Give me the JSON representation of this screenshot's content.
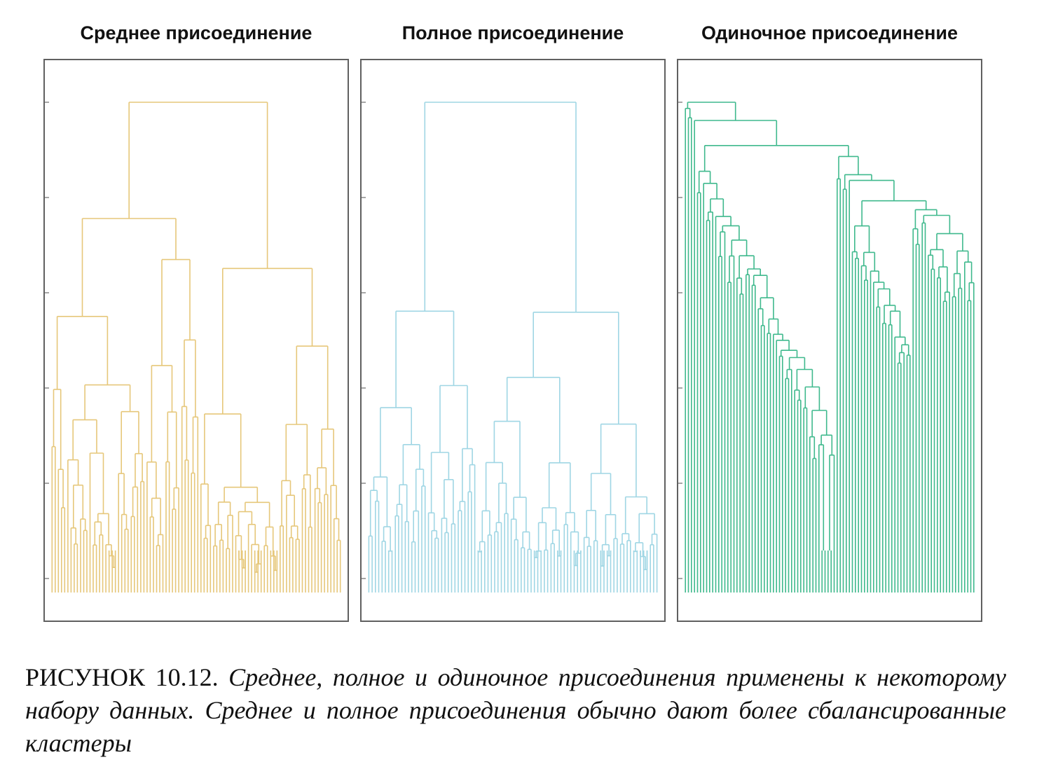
{
  "panels": [
    {
      "title": "Среднее присоединение",
      "color": "#e6c77a"
    },
    {
      "title": "Полное присоединение",
      "color": "#9fd6e4"
    },
    {
      "title": "Одиночное присоединение",
      "color": "#3fb98d"
    }
  ],
  "caption": {
    "figure_number": "РИСУНОК 10.12.",
    "text": "Среднее, полное и одиночное присоединения применены к некоторому набору данных. Среднее и полное присоединения обычно дают более сбалансированные кластеры"
  }
}
